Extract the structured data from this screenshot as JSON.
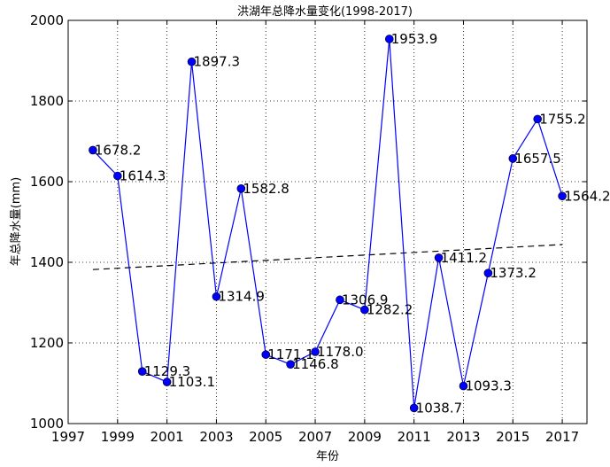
{
  "chart_data": {
    "type": "line",
    "title": "洪湖年总降水量变化(1998-2017)",
    "xlabel": "年份",
    "ylabel": "年总降水量(mm)",
    "xlim": [
      1997,
      2018
    ],
    "ylim": [
      1000,
      2000
    ],
    "xticks": [
      "1997",
      "1999",
      "2001",
      "2003",
      "2005",
      "2007",
      "2009",
      "2011",
      "2013",
      "2015",
      "2017"
    ],
    "yticks": [
      "1000",
      "1200",
      "1400",
      "1600",
      "1800",
      "2000"
    ],
    "grid": true,
    "series": [
      {
        "x": [
          1998,
          1999,
          2000,
          2001,
          2002,
          2003,
          2004,
          2005,
          2006,
          2007,
          2008,
          2009,
          2010,
          2011,
          2012,
          2013,
          2014,
          2015,
          2016,
          2017
        ],
        "values": [
          1678.2,
          1614.3,
          1129.3,
          1103.1,
          1897.3,
          1314.9,
          1582.8,
          1171.1,
          1146.8,
          1178.0,
          1306.9,
          1282.2,
          1953.9,
          1038.7,
          1411.2,
          1093.3,
          1373.2,
          1657.5,
          1755.2,
          1564.2
        ],
        "labels": [
          "1678.2",
          "1614.3",
          "1129.3",
          "1103.1",
          "1897.3",
          "1314.9",
          "1582.8",
          "1171.1",
          "1146.8",
          "1178.0",
          "1306.9",
          "1282.2",
          "1953.9",
          "1038.7",
          "1411.2",
          "1093.3",
          "1373.2",
          "1657.5",
          "1755.2",
          "1564.2"
        ],
        "color": "#0000ff",
        "marker": "circle"
      }
    ],
    "trend_line": {
      "x": [
        1998,
        2017
      ],
      "values": [
        1382,
        1444
      ],
      "style": "dashed",
      "color": "#000000"
    }
  }
}
